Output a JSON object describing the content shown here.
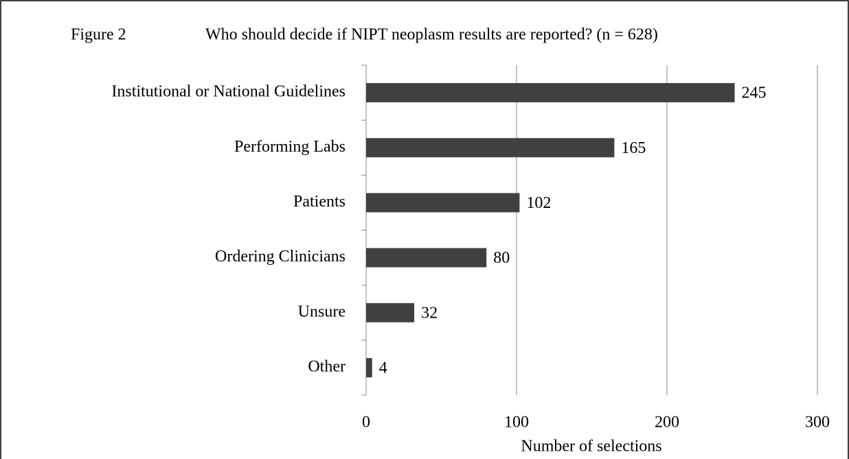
{
  "chart_data": {
    "type": "barh",
    "figure_label": "Figure 2",
    "title": "Who should decide if NIPT neoplasm results are reported?  (n = 628)",
    "categories": [
      "Institutional or National Guidelines",
      "Performing Labs",
      "Patients",
      "Ordering Clinicians",
      "Unsure",
      "Other"
    ],
    "values": [
      245,
      165,
      102,
      80,
      32,
      4
    ],
    "color": "#404040",
    "xlabel": "Number of selections",
    "xlim": [
      0,
      300
    ],
    "xticks": [
      0,
      100,
      200,
      300
    ],
    "grid": true
  }
}
